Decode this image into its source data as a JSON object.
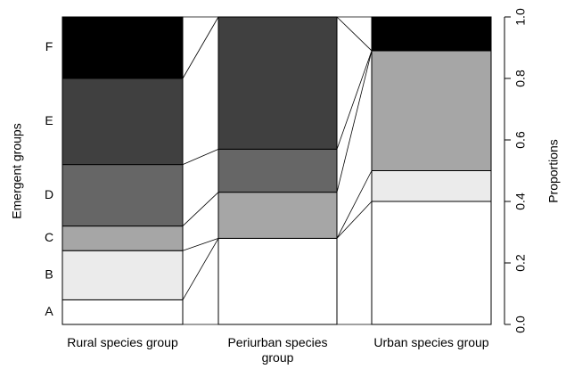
{
  "chart_data": {
    "type": "stacked_proportion_bar",
    "y_label": "Emergent groups",
    "y2_label": "Proportions",
    "categories": [
      "Rural species group",
      "Periurban species group",
      "Urban species group"
    ],
    "series": [
      {
        "name": "A",
        "color": "#ffffff",
        "values": [
          0.08,
          0.28,
          0.4
        ]
      },
      {
        "name": "B",
        "color": "#ebebeb",
        "values": [
          0.16,
          0,
          0.1
        ]
      },
      {
        "name": "C",
        "color": "#a6a6a6",
        "values": [
          0.08,
          0.15,
          0.39
        ]
      },
      {
        "name": "D",
        "color": "#666666",
        "values": [
          0.2,
          0.14,
          0
        ]
      },
      {
        "name": "E",
        "color": "#404040",
        "values": [
          0.28,
          0.43,
          0
        ]
      },
      {
        "name": "F",
        "color": "#000000",
        "values": [
          0.2,
          0,
          0.11
        ]
      }
    ],
    "y2lim": [
      0,
      1
    ],
    "y2ticks": [
      {
        "value": 0,
        "label": "0.0"
      },
      0.2,
      0.4,
      0.6,
      0.8,
      {
        "value": 1,
        "label": "1.0"
      }
    ]
  }
}
